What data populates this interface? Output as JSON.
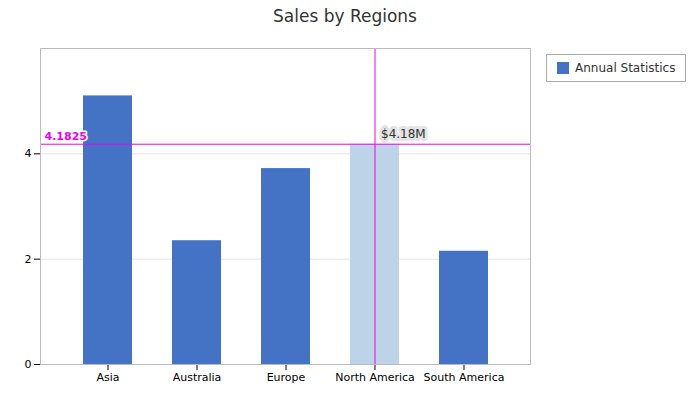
{
  "chart_data": {
    "type": "bar",
    "title": "Sales by Regions",
    "categories": [
      "Asia",
      "Australia",
      "Europe",
      "North America",
      "South America"
    ],
    "series": [
      {
        "name": "Annual Statistics",
        "color": "#4472C4",
        "values": [
          5.1,
          2.35,
          3.72,
          4.1825,
          2.15
        ],
        "colors": [
          "#4472C4",
          "#4472C4",
          "#4472C4",
          "#BDD3E8",
          "#4472C4"
        ]
      }
    ],
    "ylim": [
      0,
      6
    ],
    "yticks": [
      0,
      2,
      4
    ],
    "grid": true,
    "legend": "right",
    "annotations": [
      {
        "text": "4.1825",
        "y": 4.1825
      },
      {
        "text": "$4.18M",
        "x": "North America",
        "y": 4.1825
      }
    ]
  }
}
